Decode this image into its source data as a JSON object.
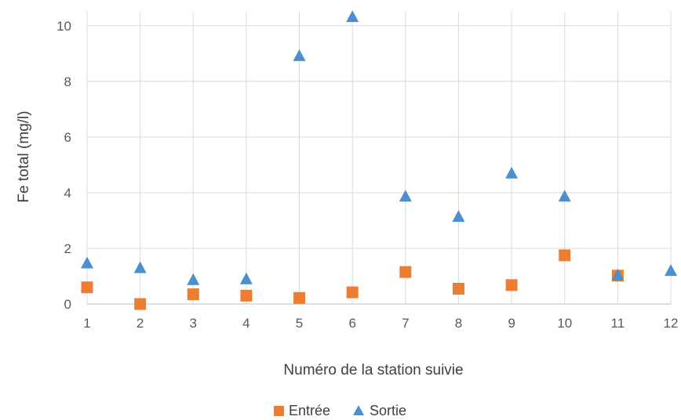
{
  "chart_data": {
    "type": "scatter",
    "xlabel": "Numéro de la station suivie",
    "ylabel": "Fe total (mg/l)",
    "xlim": [
      1,
      12
    ],
    "ylim": [
      0,
      10.5
    ],
    "x_ticks": [
      1,
      2,
      3,
      4,
      5,
      6,
      7,
      8,
      9,
      10,
      11,
      12
    ],
    "y_ticks": [
      0,
      2,
      4,
      6,
      8,
      10
    ],
    "grid": true,
    "legend_position": "bottom",
    "series": [
      {
        "name": "Entrée",
        "marker": "square",
        "color": "#ED7D31",
        "points": [
          {
            "x": 1,
            "y": 0.6
          },
          {
            "x": 2,
            "y": 0.0
          },
          {
            "x": 3,
            "y": 0.35
          },
          {
            "x": 4,
            "y": 0.3
          },
          {
            "x": 5,
            "y": 0.22
          },
          {
            "x": 6,
            "y": 0.42
          },
          {
            "x": 7,
            "y": 1.15
          },
          {
            "x": 8,
            "y": 0.55
          },
          {
            "x": 9,
            "y": 0.68
          },
          {
            "x": 10,
            "y": 1.75
          },
          {
            "x": 11,
            "y": 1.02
          }
        ]
      },
      {
        "name": "Sortie",
        "marker": "triangle",
        "color": "#4A90D0",
        "points": [
          {
            "x": 1,
            "y": 1.45
          },
          {
            "x": 2,
            "y": 1.28
          },
          {
            "x": 3,
            "y": 0.85
          },
          {
            "x": 4,
            "y": 0.88
          },
          {
            "x": 5,
            "y": 8.9
          },
          {
            "x": 6,
            "y": 10.3
          },
          {
            "x": 7,
            "y": 3.85
          },
          {
            "x": 8,
            "y": 3.12
          },
          {
            "x": 9,
            "y": 4.68
          },
          {
            "x": 10,
            "y": 3.85
          },
          {
            "x": 11,
            "y": 1.02
          },
          {
            "x": 12,
            "y": 1.18
          }
        ]
      }
    ]
  }
}
